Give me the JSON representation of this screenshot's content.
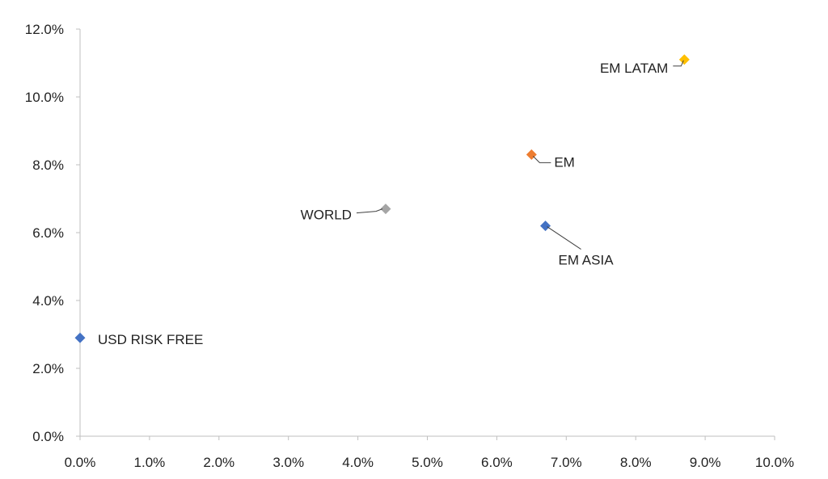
{
  "chart_data": {
    "type": "scatter",
    "title": "",
    "xlabel": "",
    "ylabel": "",
    "xlim": [
      0,
      10
    ],
    "ylim": [
      0,
      12
    ],
    "x_ticks": [
      "0.0%",
      "1.0%",
      "2.0%",
      "3.0%",
      "4.0%",
      "5.0%",
      "6.0%",
      "7.0%",
      "8.0%",
      "9.0%",
      "10.0%"
    ],
    "y_ticks": [
      "0.0%",
      "2.0%",
      "4.0%",
      "6.0%",
      "8.0%",
      "10.0%",
      "12.0%"
    ],
    "grid": false,
    "legend": "none",
    "points": [
      {
        "label": "USD RISK FREE",
        "x": 0.0,
        "y": 2.9,
        "color": "#4472C4"
      },
      {
        "label": "WORLD",
        "x": 4.4,
        "y": 6.7,
        "color": "#A5A5A5"
      },
      {
        "label": "EM",
        "x": 6.5,
        "y": 8.3,
        "color": "#ED7D31"
      },
      {
        "label": "EM ASIA",
        "x": 6.7,
        "y": 6.2,
        "color": "#4472C4"
      },
      {
        "label": "EM LATAM",
        "x": 8.7,
        "y": 11.1,
        "color": "#FFC000"
      }
    ]
  }
}
